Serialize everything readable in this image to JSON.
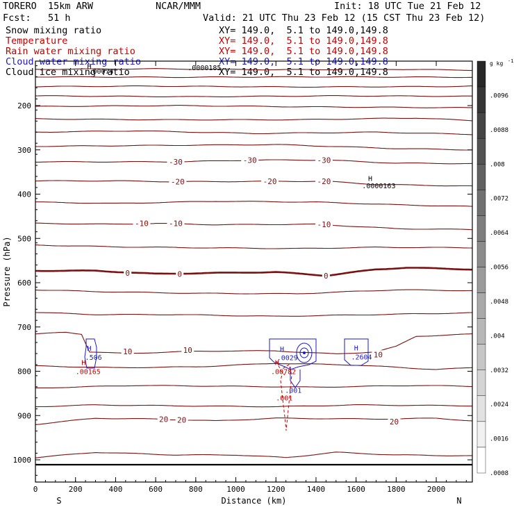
{
  "header": {
    "run_name": "TORERO  15km ARW",
    "institution": "NCAR/MMM",
    "init": "Init: 18 UTC Tue 21 Feb 12",
    "fcst": "Fcst:   51 h",
    "valid": "Valid: 21 UTC Thu 23 Feb 12 (15 CST Thu 23 Feb 12)"
  },
  "legend": [
    {
      "field": "Snow mixing ratio",
      "xy": "XY= 149.0,  5.1 to 149.0,149.8",
      "color": "#000000"
    },
    {
      "field": "Temperature",
      "xy": "XY= 149.0,  5.1 to 149.0,149.8",
      "color": "#c00000"
    },
    {
      "field": "Rain water mixing ratio",
      "xy": "XY= 149.0,  5.1 to 149.0,149.8",
      "color": "#c00000"
    },
    {
      "field": "Cloud water mixing ratio",
      "xy": "XY= 149.0,  5.1 to 149.0,149.8",
      "color": "#1a1acc"
    },
    {
      "field": "Cloud ice mixing ratio",
      "xy": "XY= 149.0,  5.1 to 149.0,149.8",
      "color": "#000000"
    }
  ],
  "chart_data": {
    "type": "contour",
    "xlabel": "Distance (km)",
    "ylabel": "Pressure (hPa)",
    "xlim": [
      0,
      2180
    ],
    "ylim": [
      1050,
      100
    ],
    "x_ticks": [
      0,
      200,
      400,
      600,
      800,
      1000,
      1200,
      1400,
      1600,
      1800,
      2000
    ],
    "y_ticks": [
      200,
      300,
      400,
      500,
      600,
      700,
      800,
      900,
      1000
    ],
    "x_end_labels": {
      "left": "S",
      "right": "N"
    },
    "colorbar": {
      "unit": "g kg",
      "unit_exp": "-1",
      "ticks": [
        ".0096",
        ".0088",
        ".008",
        ".0072",
        ".0064",
        ".0056",
        ".0048",
        ".004",
        ".0032",
        ".0024",
        ".0016",
        ".0008"
      ],
      "levels": 16
    },
    "temperature_contour_labels": [
      {
        "label": "-30",
        "x": 700,
        "p": 327
      },
      {
        "label": "-30",
        "x": 1070,
        "p": 323
      },
      {
        "label": "-30",
        "x": 1440,
        "p": 323
      },
      {
        "label": "-20",
        "x": 710,
        "p": 372
      },
      {
        "label": "-20",
        "x": 1170,
        "p": 371
      },
      {
        "label": "-20",
        "x": 1440,
        "p": 371
      },
      {
        "label": "-10",
        "x": 530,
        "p": 466
      },
      {
        "label": "-10",
        "x": 700,
        "p": 466
      },
      {
        "label": "-10",
        "x": 1440,
        "p": 468
      },
      {
        "label": "0",
        "x": 460,
        "p": 578
      },
      {
        "label": "0",
        "x": 720,
        "p": 580
      },
      {
        "label": "0",
        "x": 1450,
        "p": 584
      },
      {
        "label": "10",
        "x": 460,
        "p": 755
      },
      {
        "label": "10",
        "x": 760,
        "p": 752
      },
      {
        "label": "10",
        "x": 1710,
        "p": 762
      },
      {
        "label": "20",
        "x": 640,
        "p": 908
      },
      {
        "label": "20",
        "x": 730,
        "p": 910
      },
      {
        "label": "20",
        "x": 1790,
        "p": 914
      }
    ],
    "cloud_water_labels": [
      {
        "label": "H",
        "x": 258,
        "p": 754,
        "color": "#1a1acc"
      },
      {
        "label": ".506",
        "x": 248,
        "p": 774,
        "color": "#1a1acc"
      },
      {
        "label": "H",
        "x": 1220,
        "p": 755,
        "color": "#1a1acc"
      },
      {
        "label": ".0029",
        "x": 1205,
        "p": 775,
        "color": "#1a1acc"
      },
      {
        "label": "H",
        "x": 1590,
        "p": 753,
        "color": "#1a1acc"
      },
      {
        "label": ".2604",
        "x": 1575,
        "p": 773,
        "color": "#1a1acc"
      },
      {
        "label": ".001",
        "x": 1245,
        "p": 849,
        "color": "#1a1acc"
      }
    ],
    "rain_water_labels": [
      {
        "label": "H",
        "x": 230,
        "p": 786,
        "color": "#c00000"
      },
      {
        "label": ".00165",
        "x": 200,
        "p": 806,
        "color": "#c00000"
      },
      {
        "label": "H",
        "x": 1195,
        "p": 786,
        "color": "#c00000"
      },
      {
        "label": ".00782",
        "x": 1175,
        "p": 806,
        "color": "#c00000"
      },
      {
        "label": ".001",
        "x": 1200,
        "p": 866,
        "color": "#c00000"
      }
    ],
    "snow_labels": [
      {
        "label": "H",
        "x": 1660,
        "p": 370
      },
      {
        "label": ".0000163",
        "x": 1630,
        "p": 387
      },
      {
        "label": ".0000185",
        "x": 760,
        "p": 120
      },
      {
        "label": ".00074",
        "x": 265,
        "p": 128
      }
    ],
    "cloud_ice_labels": [
      {
        "label": "H",
        "x": 258,
        "p": 117
      }
    ]
  }
}
